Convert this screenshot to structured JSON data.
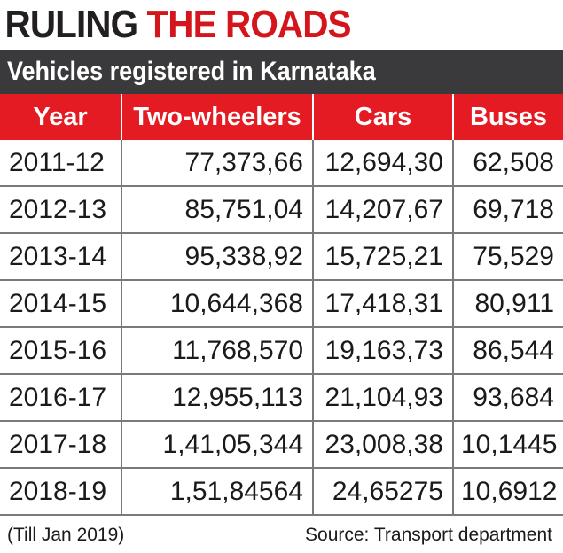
{
  "headline": {
    "part1": "RULING",
    "part2": "THE ROADS"
  },
  "subtitle": "Vehicles registered in Karnataka",
  "colors": {
    "header_red": "#e41b22",
    "headline_red": "#d4151c",
    "subtitle_bg": "#3a3a3c"
  },
  "chart_data": {
    "type": "table",
    "columns": [
      "Year",
      "Two-wheelers",
      "Cars",
      "Buses"
    ],
    "rows": [
      [
        "2011-12",
        "77,373,66",
        "12,694,30",
        "62,508"
      ],
      [
        "2012-13",
        "85,751,04",
        "14,207,67",
        "69,718"
      ],
      [
        "2013-14",
        "95,338,92",
        "15,725,21",
        "75,529"
      ],
      [
        "2014-15",
        "10,644,368",
        "17,418,31",
        "80,911"
      ],
      [
        "2015-16",
        "11,768,570",
        "19,163,73",
        "86,544"
      ],
      [
        "2016-17",
        "12,955,113",
        "21,104,93",
        "93,684"
      ],
      [
        "2017-18",
        "1,41,05,344",
        "23,008,38",
        "10,1445"
      ],
      [
        "2018-19",
        "1,51,84564",
        "24,65275",
        "10,6912"
      ]
    ]
  },
  "footer": {
    "note": "(Till Jan 2019)",
    "source": "Source: Transport department"
  }
}
